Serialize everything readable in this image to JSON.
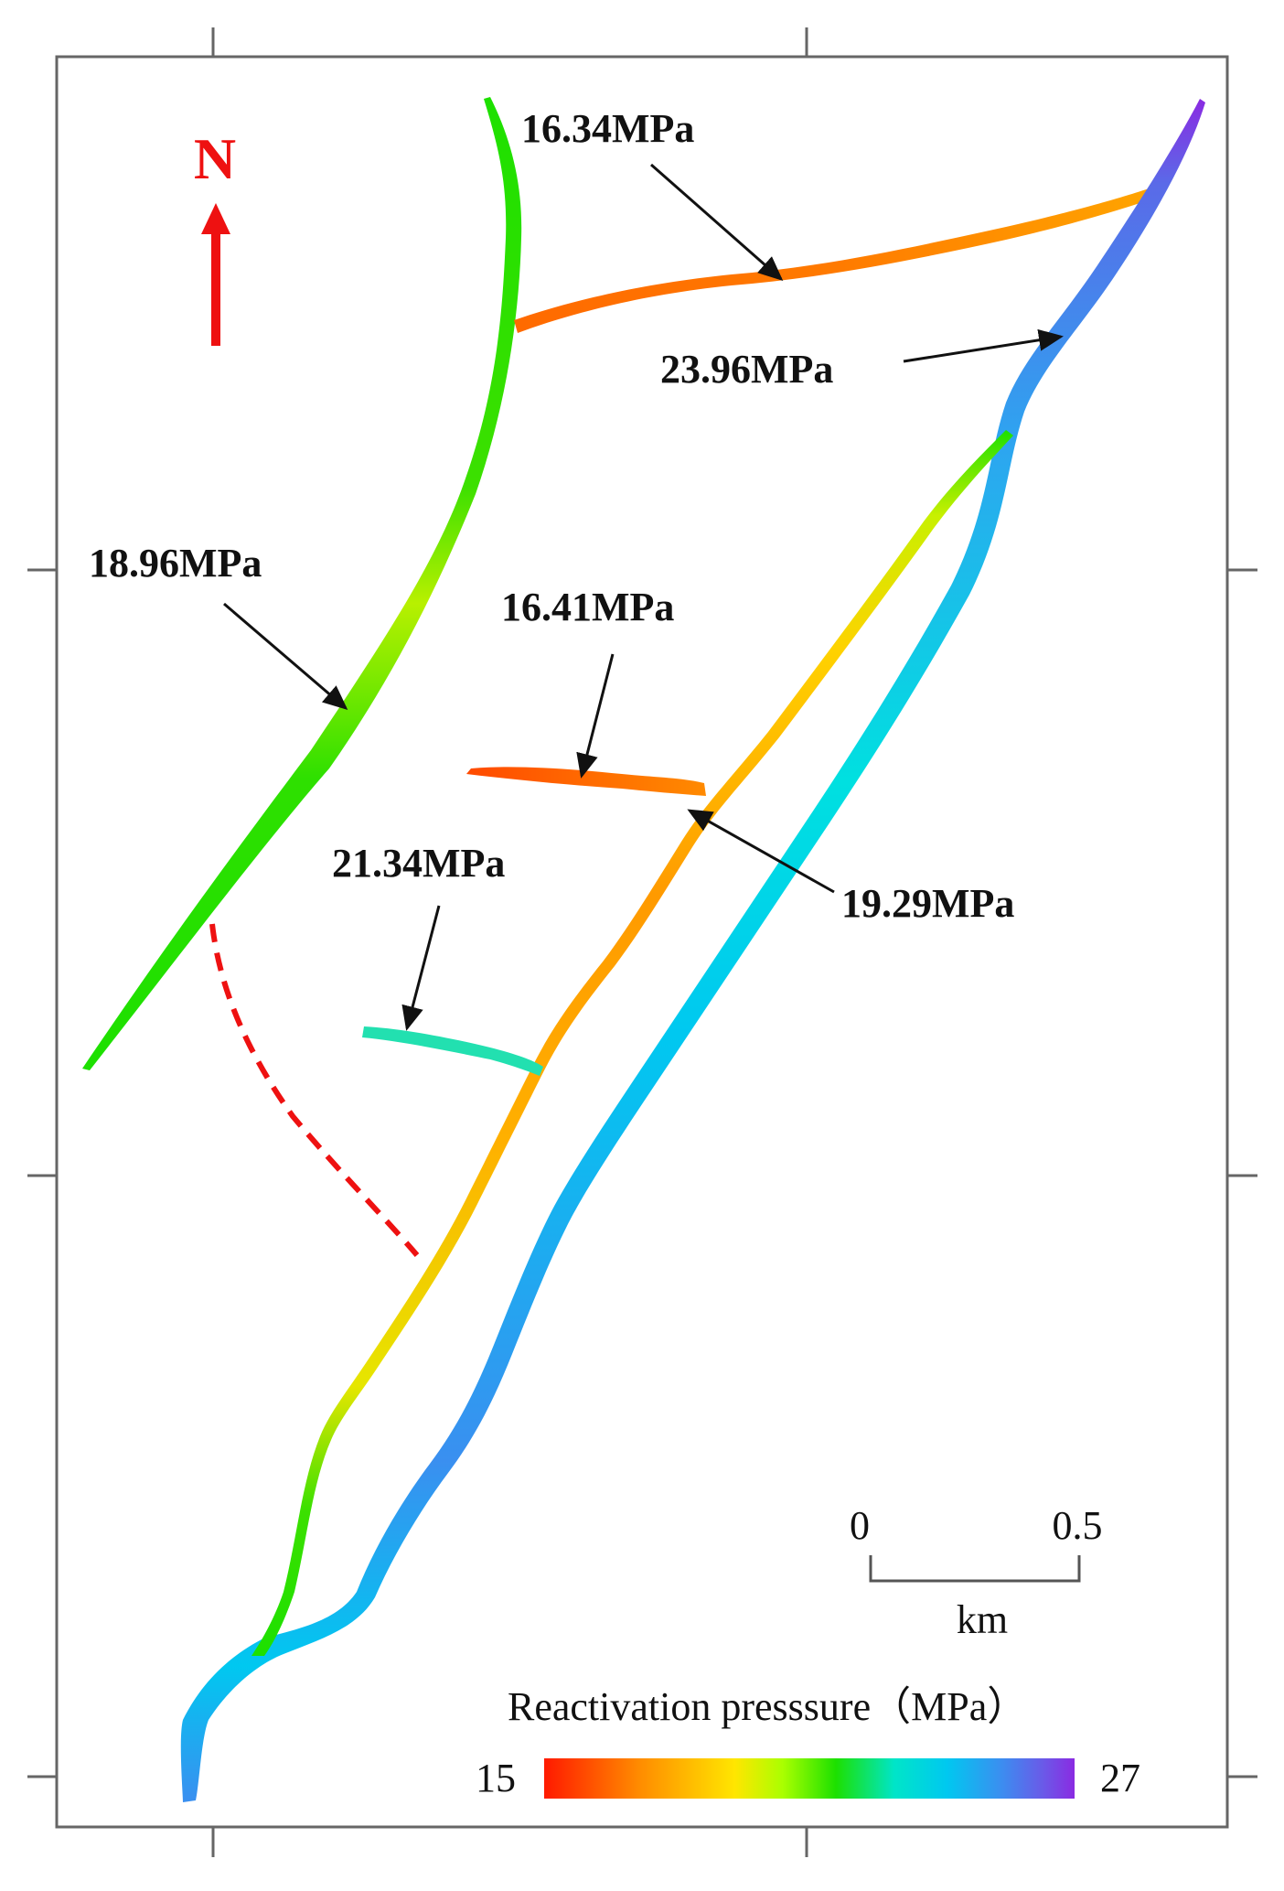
{
  "map": {
    "north_label": "N",
    "annotations": [
      {
        "id": "ann-16-34",
        "text": "16.34MPa"
      },
      {
        "id": "ann-23-96",
        "text": "23.96MPa"
      },
      {
        "id": "ann-18-96",
        "text": "18.96MPa"
      },
      {
        "id": "ann-16-41",
        "text": "16.41MPa"
      },
      {
        "id": "ann-21-34",
        "text": "21.34MPa"
      },
      {
        "id": "ann-19-29",
        "text": "19.29MPa"
      }
    ],
    "scale_bar": {
      "start": "0",
      "end": "0.5",
      "unit": "km"
    },
    "legend": {
      "title": "Reactivation presssure（MPa）",
      "min": "15",
      "max": "27",
      "colors": [
        "#ff1a00",
        "#ff8c00",
        "#ffe600",
        "#aaff00",
        "#1de000",
        "#00e5c8",
        "#00c8f0",
        "#3a8ff0",
        "#6a5ae8",
        "#8a2be2"
      ]
    },
    "dashed_line_color": "#ee1111"
  }
}
